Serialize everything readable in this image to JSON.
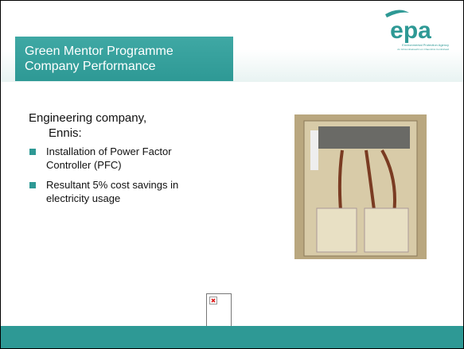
{
  "header": {
    "title_lines": [
      "Green Mentor Programme",
      "Company Performance"
    ]
  },
  "logo": {
    "name": "epa",
    "tagline": "Environmental Protection Agency",
    "tagline_irish": "An Ghníomhaireacht um Chaomhnú Comhshaoil"
  },
  "body": {
    "intro_lines": [
      "Engineering company,",
      "Ennis:"
    ],
    "bullets": [
      [
        "Installation of Power Factor",
        "Controller (PFC)"
      ],
      [
        "Resultant 5% cost savings in",
        "electricity usage"
      ]
    ]
  }
}
